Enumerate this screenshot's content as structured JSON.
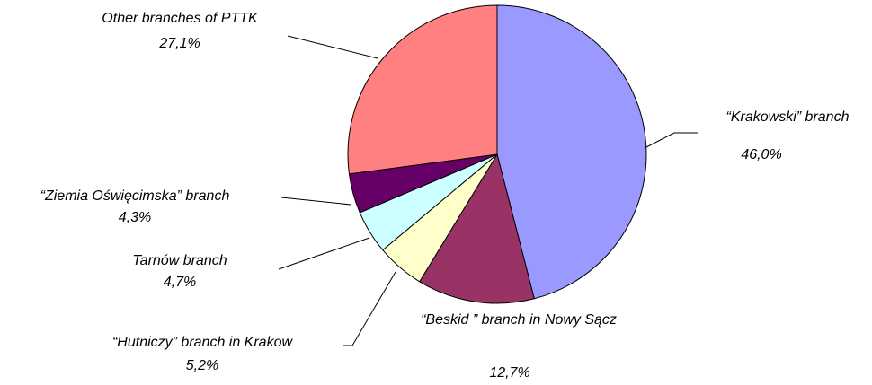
{
  "chart_data": {
    "type": "pie",
    "categories": [
      "“Krakowski” branch",
      "“Beskid ” branch in Nowy Sącz",
      "“Hutniczy” branch in Krakow",
      "Tarnów branch",
      "“Ziemia Oświęcimska” branch",
      "Other branches of PTTK"
    ],
    "values": [
      46.0,
      12.7,
      5.2,
      4.7,
      4.3,
      27.1
    ],
    "value_labels": [
      "46,0%",
      "12,7%",
      "5,2%",
      "4,7%",
      "4,3%",
      "27,1%"
    ],
    "colors": [
      "#9999ff",
      "#993366",
      "#ffffcc",
      "#ccffff",
      "#660066",
      "#ff8080"
    ]
  }
}
